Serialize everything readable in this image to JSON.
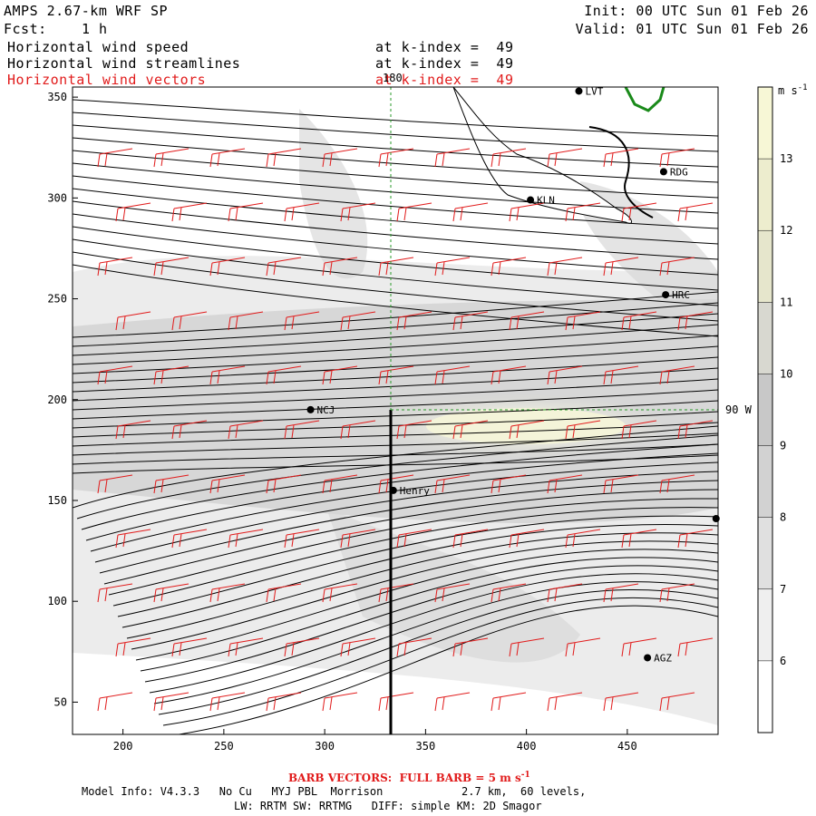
{
  "header": {
    "title": "AMPS 2.67-km WRF SP",
    "forecast_label": "Fcst:",
    "forecast_value": "1 h",
    "init": "Init: 00 UTC Sun 01 Feb 26",
    "valid": "Valid: 01 UTC Sun 01 Feb 26",
    "fields": [
      {
        "name": "Horizontal wind speed",
        "level": "at k-index =  49",
        "color": "#000000"
      },
      {
        "name": "Horizontal wind streamlines",
        "level": "at k-index =  49",
        "color": "#000000"
      },
      {
        "name": "Horizontal wind vectors",
        "level": "at k-index =  49",
        "color": "#e11b1b"
      }
    ]
  },
  "map": {
    "x_ticks": [
      "200",
      "250",
      "300",
      "350",
      "400",
      "450"
    ],
    "y_ticks": [
      "50",
      "100",
      "150",
      "200",
      "250",
      "300",
      "350"
    ],
    "meridian_label": "180",
    "parallel_label": "90 W",
    "stations": [
      {
        "id": "LVT",
        "x": 426,
        "y": 353
      },
      {
        "id": "RDG",
        "x": 468,
        "y": 313
      },
      {
        "id": "KLN",
        "x": 402,
        "y": 299
      },
      {
        "id": "HRC",
        "x": 469,
        "y": 252
      },
      {
        "id": "NCJ",
        "x": 293,
        "y": 195
      },
      {
        "id": "Henry",
        "x": 334,
        "y": 155
      },
      {
        "id": "AGZ",
        "x": 460,
        "y": 72
      },
      {
        "id": "",
        "x": 494,
        "y": 141
      }
    ],
    "vector_color": "#e11b1b",
    "streamline_color": "#000000",
    "coast_color": "#1a8a1a"
  },
  "colorbar": {
    "unit": "m s",
    "unit_exponent": "-1",
    "labels": [
      "6",
      "7",
      "8",
      "9",
      "10",
      "11",
      "12",
      "13"
    ]
  },
  "footer": {
    "barb_label": "BARB VECTORS:  FULL BARB = 5 m s",
    "barb_exponent": "-1",
    "model_info": "Model Info: V4.3.3   No Cu   MYJ PBL  Morrison            2.7 km,  60 levels,",
    "physics": "LW: RRTM SW: RRTMG   DIFF: simple KM: 2D Smagor"
  }
}
